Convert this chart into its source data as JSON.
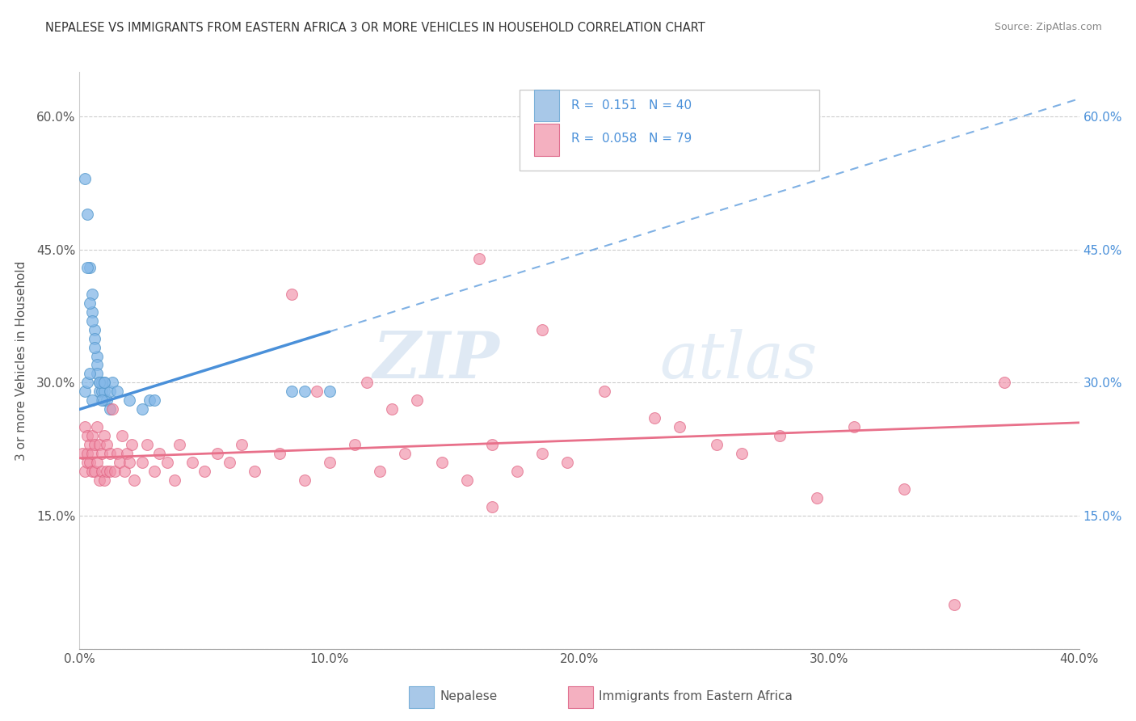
{
  "title": "NEPALESE VS IMMIGRANTS FROM EASTERN AFRICA 3 OR MORE VEHICLES IN HOUSEHOLD CORRELATION CHART",
  "source": "Source: ZipAtlas.com",
  "ylabel": "3 or more Vehicles in Household",
  "x_min": 0.0,
  "x_max": 0.4,
  "y_min": 0.0,
  "y_max": 0.65,
  "x_ticks": [
    0.0,
    0.1,
    0.2,
    0.3,
    0.4
  ],
  "x_tick_labels": [
    "0.0%",
    "10.0%",
    "20.0%",
    "30.0%",
    "40.0%"
  ],
  "y_ticks": [
    0.0,
    0.15,
    0.3,
    0.45,
    0.6
  ],
  "y_tick_labels_left": [
    "",
    "15.0%",
    "30.0%",
    "45.0%",
    "60.0%"
  ],
  "y_tick_labels_right": [
    "",
    "15.0%",
    "30.0%",
    "45.0%",
    "60.0%"
  ],
  "bottom_legend": [
    "Nepalese",
    "Immigrants from Eastern Africa"
  ],
  "blue_color": "#4a90d9",
  "pink_color": "#e8708a",
  "blue_scatter_color": "#85b8e8",
  "pink_scatter_color": "#f090a8",
  "blue_scatter_edge": "#5599cc",
  "pink_scatter_edge": "#e06080",
  "watermark_zip": "ZIP",
  "watermark_atlas": "atlas",
  "blue_R": "0.151",
  "blue_N": "40",
  "pink_R": "0.058",
  "pink_N": "79",
  "blue_x": [
    0.002,
    0.003,
    0.004,
    0.005,
    0.005,
    0.006,
    0.006,
    0.007,
    0.007,
    0.007,
    0.008,
    0.008,
    0.009,
    0.009,
    0.01,
    0.01,
    0.01,
    0.011,
    0.012,
    0.013,
    0.015,
    0.003,
    0.004,
    0.005,
    0.006,
    0.008,
    0.009,
    0.01,
    0.012,
    0.02,
    0.025,
    0.028,
    0.03,
    0.085,
    0.09,
    0.1,
    0.002,
    0.003,
    0.004,
    0.005
  ],
  "blue_y": [
    0.53,
    0.49,
    0.43,
    0.4,
    0.38,
    0.36,
    0.35,
    0.33,
    0.32,
    0.31,
    0.3,
    0.29,
    0.3,
    0.29,
    0.28,
    0.29,
    0.3,
    0.28,
    0.29,
    0.3,
    0.29,
    0.43,
    0.39,
    0.37,
    0.34,
    0.3,
    0.28,
    0.3,
    0.27,
    0.28,
    0.27,
    0.28,
    0.28,
    0.29,
    0.29,
    0.29,
    0.29,
    0.3,
    0.31,
    0.28
  ],
  "pink_x": [
    0.001,
    0.002,
    0.002,
    0.003,
    0.003,
    0.003,
    0.004,
    0.004,
    0.005,
    0.005,
    0.005,
    0.006,
    0.006,
    0.007,
    0.007,
    0.008,
    0.008,
    0.009,
    0.009,
    0.01,
    0.01,
    0.011,
    0.011,
    0.012,
    0.012,
    0.013,
    0.014,
    0.015,
    0.016,
    0.017,
    0.018,
    0.019,
    0.02,
    0.021,
    0.022,
    0.025,
    0.027,
    0.03,
    0.032,
    0.035,
    0.038,
    0.04,
    0.045,
    0.05,
    0.055,
    0.06,
    0.065,
    0.07,
    0.08,
    0.09,
    0.1,
    0.11,
    0.12,
    0.13,
    0.145,
    0.155,
    0.165,
    0.175,
    0.185,
    0.195,
    0.085,
    0.095,
    0.115,
    0.125,
    0.135,
    0.165,
    0.21,
    0.23,
    0.16,
    0.185,
    0.24,
    0.255,
    0.265,
    0.28,
    0.295,
    0.31,
    0.33,
    0.35,
    0.37
  ],
  "pink_y": [
    0.22,
    0.2,
    0.25,
    0.21,
    0.22,
    0.24,
    0.21,
    0.23,
    0.2,
    0.22,
    0.24,
    0.2,
    0.23,
    0.21,
    0.25,
    0.19,
    0.23,
    0.2,
    0.22,
    0.19,
    0.24,
    0.2,
    0.23,
    0.2,
    0.22,
    0.27,
    0.2,
    0.22,
    0.21,
    0.24,
    0.2,
    0.22,
    0.21,
    0.23,
    0.19,
    0.21,
    0.23,
    0.2,
    0.22,
    0.21,
    0.19,
    0.23,
    0.21,
    0.2,
    0.22,
    0.21,
    0.23,
    0.2,
    0.22,
    0.19,
    0.21,
    0.23,
    0.2,
    0.22,
    0.21,
    0.19,
    0.23,
    0.2,
    0.22,
    0.21,
    0.4,
    0.29,
    0.3,
    0.27,
    0.28,
    0.16,
    0.29,
    0.26,
    0.44,
    0.36,
    0.25,
    0.23,
    0.22,
    0.24,
    0.17,
    0.25,
    0.18,
    0.05,
    0.3
  ]
}
